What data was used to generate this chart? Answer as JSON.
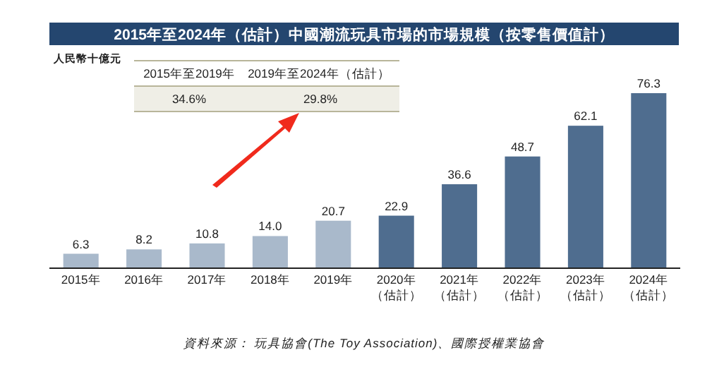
{
  "chart_data": {
    "type": "bar",
    "title": "2015年至2024年（估計）中國潮流玩具市場的市場規模（按零售價值計）",
    "ylabel": "人民幣十億元",
    "categories": [
      "2015年",
      "2016年",
      "2017年",
      "2018年",
      "2019年",
      "2020年（估計）",
      "2021年（估計）",
      "2022年（估計）",
      "2023年（估計）",
      "2024年（估計）"
    ],
    "values": [
      6.3,
      8.2,
      10.8,
      14.0,
      20.7,
      22.9,
      36.6,
      48.7,
      62.1,
      76.3
    ],
    "colors": [
      "#a9b9cb",
      "#a9b9cb",
      "#a9b9cb",
      "#a9b9cb",
      "#a9b9cb",
      "#4f6d8f",
      "#4f6d8f",
      "#4f6d8f",
      "#4f6d8f",
      "#4f6d8f"
    ],
    "value_labels": [
      "6.3",
      "8.2",
      "10.8",
      "14.0",
      "20.7",
      "22.9",
      "36.6",
      "48.7",
      "62.1",
      "76.3"
    ],
    "annotations": [
      "2015年至2019年",
      "2019年至2024年（估計）",
      "34.6%",
      "29.8%",
      "資料來源： 玩具協會(The Toy Association)、國際授權業協會"
    ]
  }
}
